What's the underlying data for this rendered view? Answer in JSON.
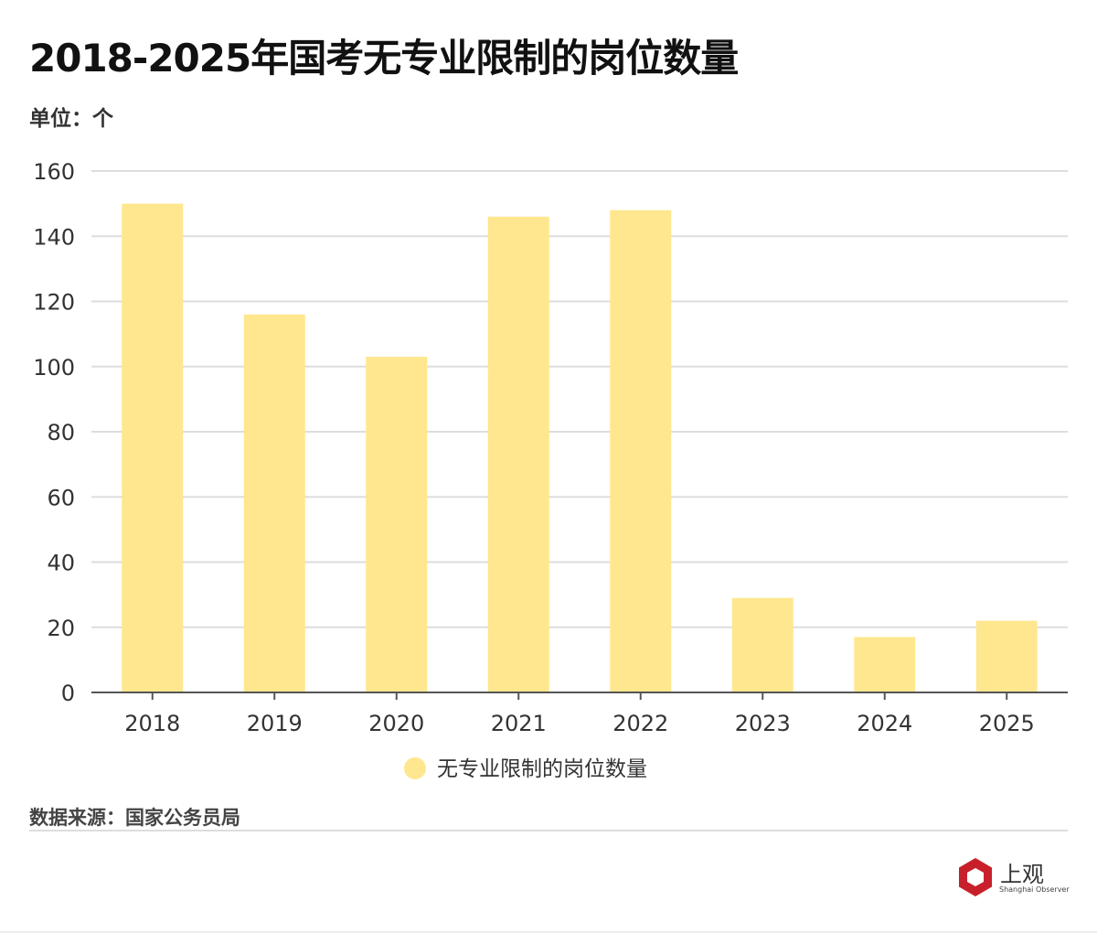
{
  "chart_data": {
    "type": "bar",
    "title": "2018-2025年国考无专业限制的岗位数量",
    "unit_label": "单位：个",
    "categories": [
      "2018",
      "2019",
      "2020",
      "2021",
      "2022",
      "2023",
      "2024",
      "2025"
    ],
    "series": [
      {
        "name": "无专业限制的岗位数量",
        "values": [
          150,
          116,
          103,
          146,
          148,
          29,
          17,
          22
        ],
        "color": "#FFE78F"
      }
    ],
    "yticks": [
      0,
      20,
      40,
      60,
      80,
      100,
      120,
      140,
      160
    ],
    "ylim": [
      0,
      160
    ],
    "grid": true,
    "legend": "bottom-center",
    "xlabel": "",
    "ylabel": ""
  },
  "source": "数据来源：国家公务员局",
  "logo": {
    "name": "上观",
    "sub": "Shanghai Observer"
  }
}
